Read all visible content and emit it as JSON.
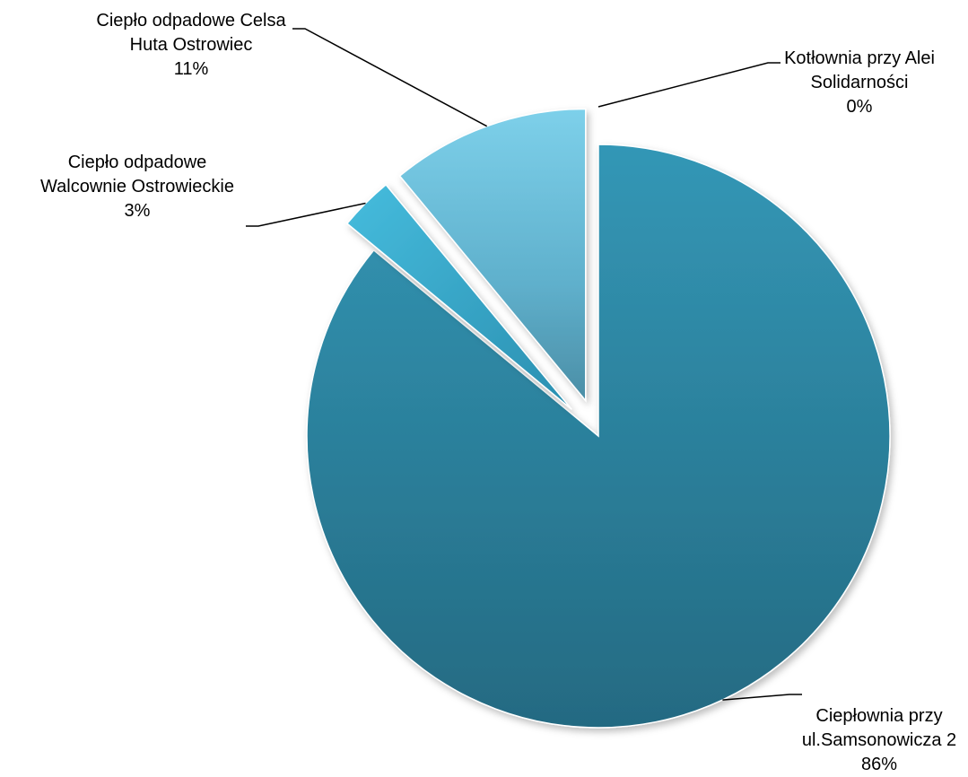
{
  "chart_data": {
    "type": "pie",
    "slices": [
      {
        "label_lines": [
          "Ciepłownia przy",
          "ul.Samsonowicza 2"
        ],
        "value": 86,
        "value_label": "86%",
        "color": "#2e8aa8"
      },
      {
        "label_lines": [
          "Ciepło odpadowe",
          "Walcownie Ostrowieckie"
        ],
        "value": 3,
        "value_label": "3%",
        "color": "#3aa9cc"
      },
      {
        "label_lines": [
          "Ciepło odpadowe Celsa",
          "Huta Ostrowiec"
        ],
        "value": 11,
        "value_label": "11%",
        "color": "#6cc3e0"
      },
      {
        "label_lines": [
          "Kotłownia przy Alei",
          "Solidarności"
        ],
        "value": 0,
        "value_label": "0%",
        "color": "#8fd3ea"
      }
    ],
    "legend": "none"
  }
}
